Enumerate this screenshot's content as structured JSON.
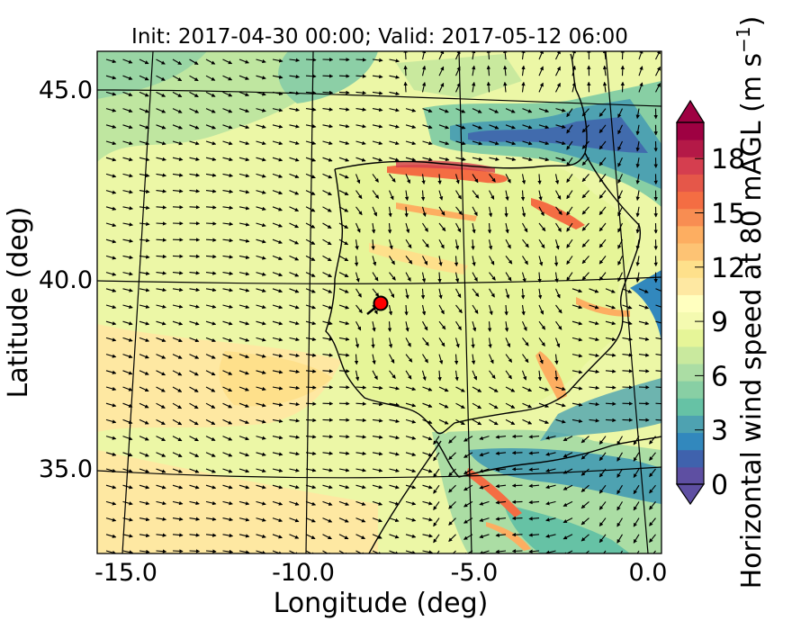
{
  "title": "Init: 2017-04-30 00:00; Valid: 2017-05-12 06:00",
  "xlabel": "Longitude (deg)",
  "ylabel": "Latitude (deg)",
  "x_ticks": [
    "-15.0",
    "-10.0",
    "-5.0",
    "0.0"
  ],
  "y_ticks": [
    "45.0",
    "40.0",
    "35.0"
  ],
  "colorbar": {
    "label": "Horizontal wind speed at 80 mAGL (m s",
    "label_sup": "−1",
    "label_close": ")",
    "ticks": [
      "0",
      "3",
      "6",
      "9",
      "12",
      "15",
      "18"
    ],
    "levels": [
      0,
      20
    ],
    "colors": [
      "#5e4fa2",
      "#3f62ad",
      "#3288bd",
      "#4ea2b1",
      "#66c2a5",
      "#88cfa4",
      "#abdda4",
      "#c9e99e",
      "#e6f598",
      "#f4fab0",
      "#ffffbf",
      "#fee8a2",
      "#fee08b",
      "#fdc374",
      "#fdae61",
      "#f88d52",
      "#f46d43",
      "#e55749",
      "#d53e4f",
      "#b41947",
      "#9e0142"
    ]
  },
  "map": {
    "region": "Iberian Peninsula",
    "lon_range": [
      -16,
      0.2
    ],
    "lat_range": [
      32.8,
      46
    ],
    "marker": {
      "lon": -7.7,
      "lat": 39.3,
      "color": "#ff0000"
    },
    "vector_field": "horizontal wind arrows",
    "land_color": "#e6f598",
    "ocean_color": "#f4fab0"
  }
}
